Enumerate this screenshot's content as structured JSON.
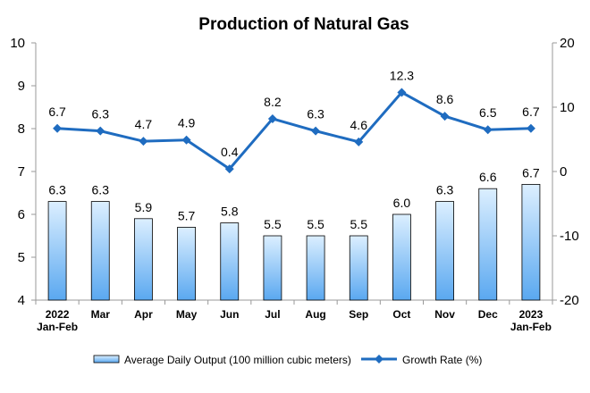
{
  "chart_data": {
    "type": "bar-line-combo",
    "title": "Production of Natural Gas",
    "categories": [
      [
        "2022",
        "Jan-Feb"
      ],
      [
        "Mar"
      ],
      [
        "Apr"
      ],
      [
        "May"
      ],
      [
        "Jun"
      ],
      [
        "Jul"
      ],
      [
        "Aug"
      ],
      [
        "Sep"
      ],
      [
        "Oct"
      ],
      [
        "Nov"
      ],
      [
        "Dec"
      ],
      [
        "2023",
        "Jan-Feb"
      ]
    ],
    "left_axis": {
      "min": 4,
      "max": 10,
      "ticks": [
        4,
        5,
        6,
        7,
        8,
        9,
        10
      ]
    },
    "right_axis": {
      "min": -20,
      "max": 20,
      "ticks": [
        -20,
        -10,
        0,
        10,
        20
      ]
    },
    "series": [
      {
        "name": "Average Daily Output (100 million cubic meters)",
        "type": "bar",
        "axis": "left",
        "values": [
          6.3,
          6.3,
          5.9,
          5.7,
          5.8,
          5.5,
          5.5,
          5.5,
          6.0,
          6.3,
          6.6,
          6.7
        ],
        "labels": [
          "6.3",
          "6.3",
          "5.9",
          "5.7",
          "5.8",
          "5.5",
          "5.5",
          "5.5",
          "6.0",
          "6.3",
          "6.6",
          "6.7"
        ]
      },
      {
        "name": "Growth Rate (%)",
        "type": "line",
        "axis": "right",
        "values": [
          6.7,
          6.3,
          4.7,
          4.9,
          0.4,
          8.2,
          6.3,
          4.6,
          12.3,
          8.6,
          6.5,
          6.7
        ],
        "labels": [
          "6.7",
          "6.3",
          "4.7",
          "4.9",
          "0.4",
          "8.2",
          "6.3",
          "4.6",
          "12.3",
          "8.6",
          "6.5",
          "6.7"
        ]
      }
    ],
    "legend_position": "bottom",
    "grid": false,
    "colors": {
      "bar_fill_top": "#dcefff",
      "bar_fill_bottom": "#5aa8f0",
      "bar_stroke": "#000000",
      "line": "#1f6cc0",
      "axis": "#999999"
    }
  }
}
